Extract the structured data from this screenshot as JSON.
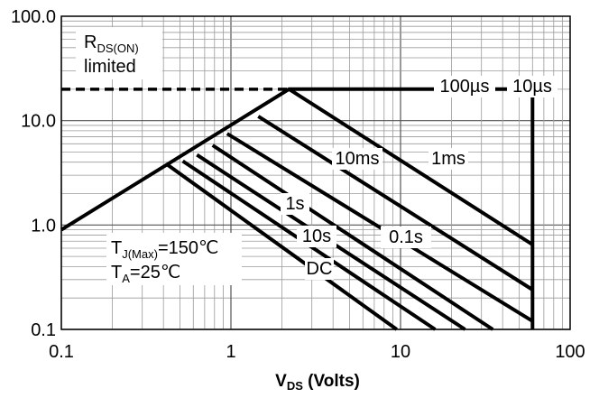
{
  "chart_data": {
    "type": "line",
    "x_scale": "log",
    "y_scale": "log",
    "xlim": [
      0.1,
      100
    ],
    "ylim": [
      0.1,
      100
    ],
    "grid": true,
    "x_ticks": [
      "0.1",
      "1",
      "10",
      "100"
    ],
    "y_ticks": [
      "0.1",
      "1.0",
      "10.0",
      "100.0"
    ],
    "xlabel": {
      "main": "V",
      "sub": "DS",
      "rest": " (Volts)"
    },
    "series": [
      {
        "name": "10µs",
        "x": [
          0.1,
          0.42,
          2.2,
          60,
          60
        ],
        "y": [
          0.9,
          3.8,
          20,
          20,
          0.1
        ]
      },
      {
        "name": "100µs",
        "x": [
          2.2,
          60
        ],
        "y": [
          20,
          0.65
        ]
      },
      {
        "name": "1ms",
        "x": [
          1.45,
          60
        ],
        "y": [
          11,
          0.24
        ]
      },
      {
        "name": "10ms",
        "x": [
          0.95,
          60
        ],
        "y": [
          7.5,
          0.12
        ]
      },
      {
        "name": "0.1s",
        "x": [
          0.78,
          35
        ],
        "y": [
          5.8,
          0.1
        ]
      },
      {
        "name": "1s",
        "x": [
          0.63,
          24
        ],
        "y": [
          4.7,
          0.1
        ]
      },
      {
        "name": "10s",
        "x": [
          0.52,
          16
        ],
        "y": [
          4.1,
          0.1
        ]
      },
      {
        "name": "DC",
        "x": [
          0.42,
          9.5
        ],
        "y": [
          3.8,
          0.1
        ]
      }
    ],
    "rds_limit": {
      "x": [
        0.1,
        2.2
      ],
      "y": [
        20,
        20
      ]
    },
    "annotations": {
      "rds": {
        "main": "R",
        "sub": "DS(ON)"
      },
      "rds_line2": "limited",
      "tj": {
        "main": "T",
        "sub": "J(Max)",
        "rest": "=150℃"
      },
      "ta": {
        "main": "T",
        "sub": "A",
        "rest": "=25℃"
      }
    }
  }
}
